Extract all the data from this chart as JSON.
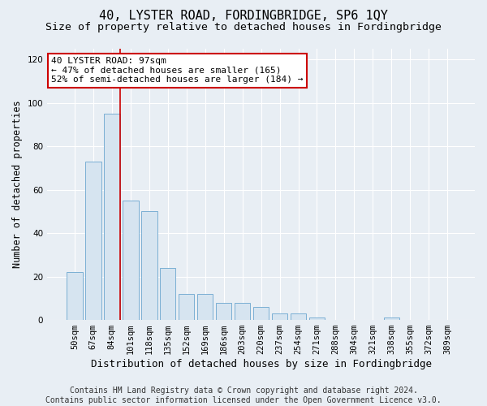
{
  "title": "40, LYSTER ROAD, FORDINGBRIDGE, SP6 1QY",
  "subtitle": "Size of property relative to detached houses in Fordingbridge",
  "xlabel": "Distribution of detached houses by size in Fordingbridge",
  "ylabel": "Number of detached properties",
  "categories": [
    "50sqm",
    "67sqm",
    "84sqm",
    "101sqm",
    "118sqm",
    "135sqm",
    "152sqm",
    "169sqm",
    "186sqm",
    "203sqm",
    "220sqm",
    "237sqm",
    "254sqm",
    "271sqm",
    "288sqm",
    "304sqm",
    "321sqm",
    "338sqm",
    "355sqm",
    "372sqm",
    "389sqm"
  ],
  "values": [
    22,
    73,
    95,
    55,
    50,
    24,
    12,
    12,
    8,
    8,
    6,
    3,
    3,
    1,
    0,
    0,
    0,
    1,
    0,
    0,
    0
  ],
  "bar_color": "#d6e4f0",
  "bar_edge_color": "#7aafd4",
  "vline_color": "#cc0000",
  "annotation_text": "40 LYSTER ROAD: 97sqm\n← 47% of detached houses are smaller (165)\n52% of semi-detached houses are larger (184) →",
  "annotation_box_color": "#ffffff",
  "annotation_box_edge": "#cc0000",
  "ylim": [
    0,
    125
  ],
  "yticks": [
    0,
    20,
    40,
    60,
    80,
    100,
    120
  ],
  "footer": "Contains HM Land Registry data © Crown copyright and database right 2024.\nContains public sector information licensed under the Open Government Licence v3.0.",
  "title_fontsize": 11,
  "subtitle_fontsize": 9.5,
  "xlabel_fontsize": 9,
  "ylabel_fontsize": 8.5,
  "tick_fontsize": 7.5,
  "annotation_fontsize": 8,
  "footer_fontsize": 7,
  "background_color": "#e8eef4",
  "plot_bg_color": "#e8eef4",
  "grid_color": "#ffffff"
}
